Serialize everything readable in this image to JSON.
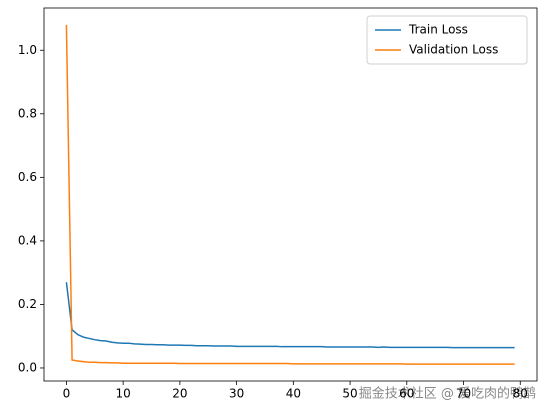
{
  "chart_data": {
    "type": "line",
    "x": [
      0,
      1,
      2,
      3,
      4,
      5,
      6,
      7,
      8,
      9,
      10,
      11,
      12,
      13,
      14,
      15,
      16,
      17,
      18,
      19,
      20,
      21,
      22,
      23,
      24,
      25,
      26,
      27,
      28,
      29,
      30,
      31,
      32,
      33,
      34,
      35,
      36,
      37,
      38,
      39,
      40,
      41,
      42,
      43,
      44,
      45,
      46,
      47,
      48,
      49,
      50,
      51,
      52,
      53,
      54,
      55,
      56,
      57,
      58,
      59,
      60,
      61,
      62,
      63,
      64,
      65,
      66,
      67,
      68,
      69,
      70,
      71,
      72,
      73,
      74,
      75,
      76,
      77,
      78,
      79
    ],
    "series": [
      {
        "name": "Train Loss",
        "color": "#1f77b4",
        "values": [
          0.27,
          0.12,
          0.105,
          0.097,
          0.093,
          0.089,
          0.086,
          0.085,
          0.081,
          0.079,
          0.078,
          0.078,
          0.076,
          0.075,
          0.074,
          0.074,
          0.073,
          0.073,
          0.072,
          0.072,
          0.072,
          0.071,
          0.071,
          0.07,
          0.07,
          0.07,
          0.069,
          0.069,
          0.069,
          0.069,
          0.068,
          0.068,
          0.068,
          0.068,
          0.068,
          0.068,
          0.068,
          0.068,
          0.067,
          0.067,
          0.067,
          0.067,
          0.067,
          0.067,
          0.067,
          0.067,
          0.066,
          0.066,
          0.066,
          0.066,
          0.066,
          0.066,
          0.066,
          0.066,
          0.066,
          0.065,
          0.066,
          0.065,
          0.065,
          0.065,
          0.065,
          0.065,
          0.065,
          0.065,
          0.065,
          0.065,
          0.065,
          0.065,
          0.064,
          0.064,
          0.064,
          0.064,
          0.064,
          0.064,
          0.064,
          0.064,
          0.064,
          0.064,
          0.064,
          0.064
        ]
      },
      {
        "name": "Validation Loss",
        "color": "#ff7f0e",
        "values": [
          1.08,
          0.025,
          0.022,
          0.02,
          0.018,
          0.018,
          0.017,
          0.017,
          0.016,
          0.016,
          0.015,
          0.015,
          0.015,
          0.015,
          0.015,
          0.015,
          0.015,
          0.015,
          0.015,
          0.015,
          0.014,
          0.014,
          0.014,
          0.014,
          0.014,
          0.014,
          0.014,
          0.014,
          0.014,
          0.014,
          0.014,
          0.014,
          0.014,
          0.014,
          0.014,
          0.014,
          0.014,
          0.014,
          0.014,
          0.014,
          0.013,
          0.013,
          0.013,
          0.013,
          0.013,
          0.013,
          0.013,
          0.013,
          0.013,
          0.013,
          0.013,
          0.013,
          0.013,
          0.013,
          0.013,
          0.013,
          0.013,
          0.013,
          0.013,
          0.013,
          0.012,
          0.012,
          0.012,
          0.012,
          0.012,
          0.012,
          0.012,
          0.012,
          0.012,
          0.012,
          0.012,
          0.012,
          0.012,
          0.012,
          0.012,
          0.012,
          0.012,
          0.012,
          0.012,
          0.012
        ]
      }
    ],
    "xlim": [
      -3.95,
      82.95
    ],
    "xticks": [
      0,
      10,
      20,
      30,
      40,
      50,
      60,
      70,
      80
    ],
    "ylim": [
      -0.041,
      1.133
    ],
    "yticks": [
      {
        "value": 0,
        "label": "0.0"
      },
      0.2,
      0.4,
      0.6,
      0.8,
      {
        "value": 1,
        "label": "1.0"
      }
    ],
    "legend": "upper right",
    "grid": false,
    "watermark": "掘金技术社区 @ 爱吃肉的鸭鹊"
  }
}
